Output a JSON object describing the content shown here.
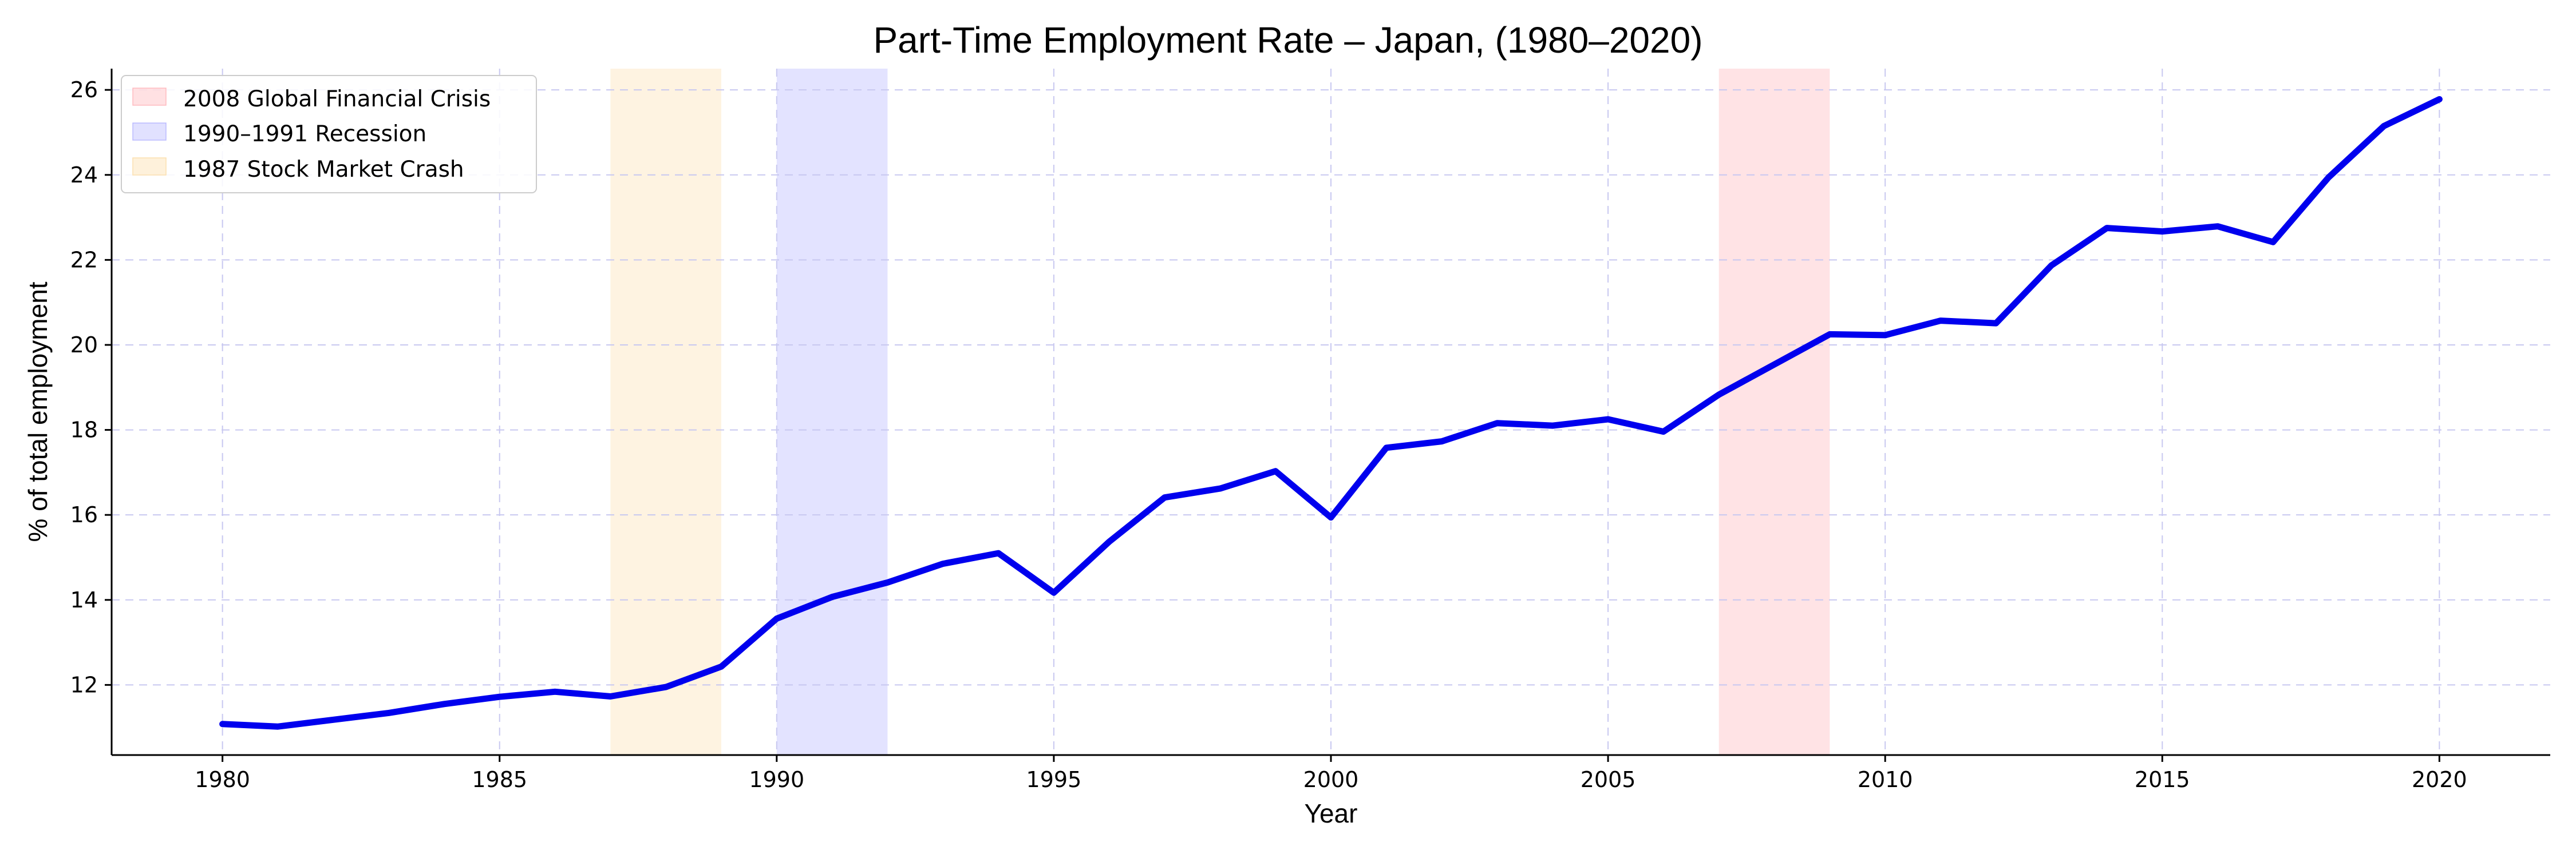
{
  "chart_data": {
    "type": "line",
    "title": "Part-Time Employment Rate – Japan, (1980–2020)",
    "xlabel": "Year",
    "ylabel": "% of total employment",
    "xlim": [
      1978,
      2022
    ],
    "ylim": [
      10.35,
      26.5
    ],
    "xticks": [
      1980,
      1985,
      1990,
      1995,
      2000,
      2005,
      2010,
      2015,
      2020
    ],
    "yticks": [
      12,
      14,
      16,
      18,
      20,
      22,
      24,
      26
    ],
    "grid": true,
    "legend_position": "upper-left",
    "series": [
      {
        "color": "#0000ee",
        "x": [
          1980,
          1981,
          1982,
          1983,
          1984,
          1985,
          1986,
          1987,
          1988,
          1989,
          1990,
          1991,
          1992,
          1993,
          1994,
          1995,
          1996,
          1997,
          1998,
          1999,
          2000,
          2001,
          2002,
          2003,
          2004,
          2005,
          2006,
          2007,
          2008,
          2009,
          2010,
          2011,
          2012,
          2013,
          2014,
          2015,
          2016,
          2017,
          2018,
          2019,
          2020
        ],
        "values": [
          11.08,
          11.02,
          11.18,
          11.34,
          11.55,
          11.72,
          11.84,
          11.73,
          11.95,
          12.43,
          13.56,
          14.07,
          14.41,
          14.85,
          15.1,
          14.17,
          15.37,
          16.41,
          16.62,
          17.03,
          15.94,
          17.58,
          17.73,
          18.16,
          18.1,
          18.25,
          17.96,
          18.83,
          19.54,
          20.25,
          20.23,
          20.57,
          20.51,
          21.87,
          22.75,
          22.67,
          22.79,
          22.42,
          23.94,
          25.15,
          25.78
        ]
      }
    ],
    "shaded_regions": [
      {
        "label": "2008 Global Financial Crisis",
        "x0": 2007,
        "x1": 2009,
        "color": "#ff9aa2"
      },
      {
        "label": "1990–1991 Recession",
        "x0": 1990,
        "x1": 1992,
        "color": "#9a9aff"
      },
      {
        "label": "1987 Stock Market Crash",
        "x0": 1987,
        "x1": 1989,
        "color": "#fce0b0"
      }
    ],
    "legend": [
      "2008 Global Financial Crisis",
      "1990–1991 Recession",
      "1987 Stock Market Crash"
    ]
  }
}
